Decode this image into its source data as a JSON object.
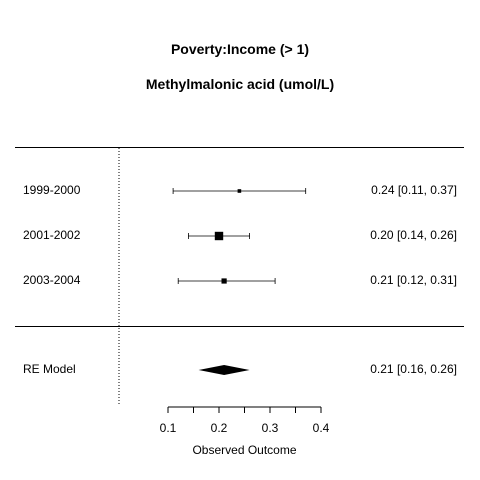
{
  "title": "Poverty:Income (> 1)",
  "subtitle": "Methylmalonic acid (umol/L)",
  "chart_data": {
    "type": "forest",
    "title": "Poverty:Income (> 1)",
    "subtitle": "Methylmalonic acid (umol/L)",
    "xlabel": "Observed Outcome",
    "xlim": [
      0.1,
      0.4
    ],
    "xticks": [
      0.1,
      0.2,
      0.3,
      0.4
    ],
    "reference_line": 0,
    "studies": [
      {
        "label": "1999-2000",
        "estimate": 0.24,
        "ci_low": 0.11,
        "ci_high": 0.37,
        "text": "0.24 [0.11, 0.37]",
        "weight": 1
      },
      {
        "label": "2001-2002",
        "estimate": 0.2,
        "ci_low": 0.14,
        "ci_high": 0.26,
        "text": "0.20 [0.14, 0.26]",
        "weight": 4
      },
      {
        "label": "2003-2004",
        "estimate": 0.21,
        "ci_low": 0.12,
        "ci_high": 0.31,
        "text": "0.21 [0.12, 0.31]",
        "weight": 2
      }
    ],
    "summary": {
      "label": "RE Model",
      "estimate": 0.21,
      "ci_low": 0.16,
      "ci_high": 0.26,
      "text": "0.21 [0.16, 0.26]"
    }
  }
}
